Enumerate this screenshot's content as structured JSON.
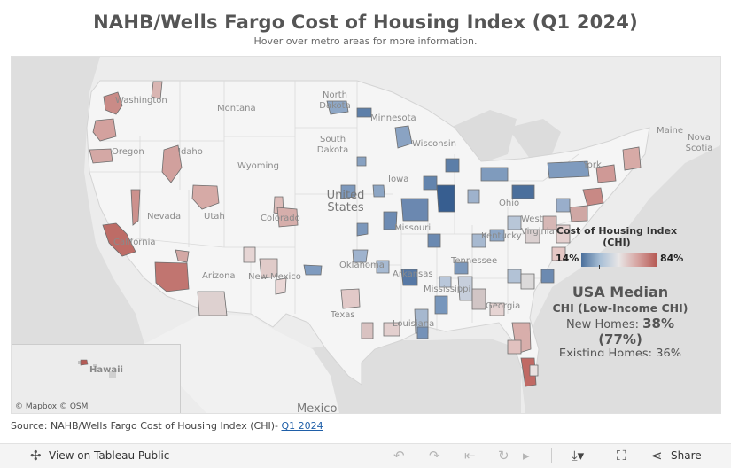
{
  "header": {
    "title": "NAHB/Wells Fargo Cost of Housing Index (Q1 2024)",
    "subtitle": "Hover over metro areas for more information."
  },
  "map": {
    "state_labels": [
      "Washington",
      "Montana",
      "North Dakota",
      "Minnesota",
      "South Dakota",
      "Oregon",
      "Idaho",
      "Wyoming",
      "Wisconsin",
      "Iowa",
      "Nevada",
      "Utah",
      "Colorado",
      "California",
      "Arizona",
      "New Mexico",
      "Texas",
      "Oklahoma",
      "Arkansas",
      "Mississippi",
      "Georgia",
      "Louisiana",
      "Tennessee",
      "Kentucky",
      "Virginia",
      "West",
      "Ohio",
      "York",
      "Maine",
      "Nova Scotia",
      "Missouri",
      "Hawaii"
    ],
    "country_labels": [
      "United States",
      "Mexico"
    ],
    "attribution": "© Mapbox  © OSM"
  },
  "legend": {
    "title": "Cost of Housing Index (CHI)",
    "min_label": "14%",
    "max_label": "84%",
    "colors": {
      "low": "#4a6f9b",
      "mid": "#e8e6e6",
      "high": "#b65a55"
    }
  },
  "median": {
    "title": "USA Median",
    "subtitle": "CHI (Low-Income CHI)",
    "new_homes_label": "New Homes:",
    "new_homes_value": "38%",
    "new_homes_low_income": "(77%)",
    "existing_homes_partial": "Existing Homes: 36%"
  },
  "footer": {
    "source_text": "Source: NAHB/Wells Fargo Cost of Housing Index (CHI)-",
    "source_link": "Q1 2024"
  },
  "toolbar": {
    "view_label": "View on Tableau Public",
    "share_label": "Share"
  }
}
